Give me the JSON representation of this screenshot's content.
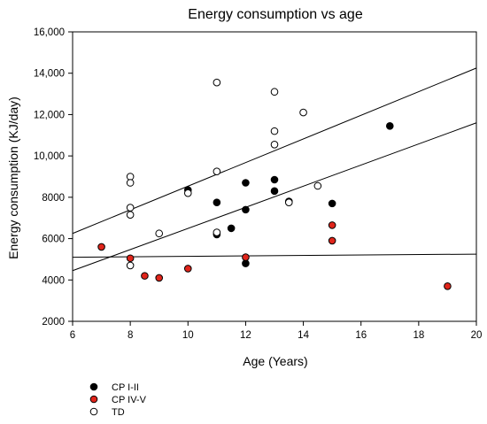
{
  "chart_data": {
    "type": "scatter",
    "title": "Energy consumption vs age",
    "xlabel": "Age (Years)",
    "ylabel": "Energy consumption (KJ/day)",
    "xlim": [
      6,
      20
    ],
    "ylim": [
      2000,
      16000
    ],
    "x_ticks": [
      "6",
      "8",
      "10",
      "12",
      "14",
      "16",
      "18",
      "20"
    ],
    "y_ticks": [
      "2000",
      "4000",
      "6000",
      "8000",
      "10,000",
      "12,000",
      "14,000",
      "16,000"
    ],
    "grid": false,
    "legend_position": "bottom-left",
    "series": [
      {
        "name": "CP I-II",
        "color": "#000000",
        "marker": "filled-circle",
        "points": [
          [
            10,
            8350
          ],
          [
            11,
            7750
          ],
          [
            11,
            6200
          ],
          [
            11.5,
            6500
          ],
          [
            12,
            8700
          ],
          [
            12,
            7400
          ],
          [
            12,
            4800
          ],
          [
            13,
            8850
          ],
          [
            13,
            8300
          ],
          [
            13.5,
            7800
          ],
          [
            15,
            7700
          ],
          [
            17,
            11450
          ]
        ]
      },
      {
        "name": "CP IV-V",
        "color": "#e0251b",
        "marker": "filled-circle",
        "points": [
          [
            7,
            5600
          ],
          [
            8,
            5050
          ],
          [
            8.5,
            4200
          ],
          [
            9,
            4100
          ],
          [
            10,
            4550
          ],
          [
            12,
            5100
          ],
          [
            15,
            6650
          ],
          [
            15,
            5900
          ],
          [
            19,
            3700
          ]
        ]
      },
      {
        "name": "TD",
        "color": "#ffffff",
        "marker": "open-circle",
        "points": [
          [
            8,
            9000
          ],
          [
            8,
            8700
          ],
          [
            8,
            7500
          ],
          [
            8,
            7150
          ],
          [
            8,
            4700
          ],
          [
            9,
            6250
          ],
          [
            10,
            8200
          ],
          [
            11,
            13550
          ],
          [
            11,
            9250
          ],
          [
            11,
            6300
          ],
          [
            13,
            13100
          ],
          [
            13,
            11200
          ],
          [
            13,
            10550
          ],
          [
            13.5,
            7750
          ],
          [
            14,
            12100
          ],
          [
            14.5,
            8550
          ]
        ]
      }
    ],
    "regression_lines": [
      {
        "x": [
          6,
          20
        ],
        "y": [
          6250,
          14250
        ]
      },
      {
        "x": [
          6,
          20
        ],
        "y": [
          4450,
          11600
        ]
      },
      {
        "x": [
          6,
          20
        ],
        "y": [
          5100,
          5250
        ]
      }
    ]
  }
}
